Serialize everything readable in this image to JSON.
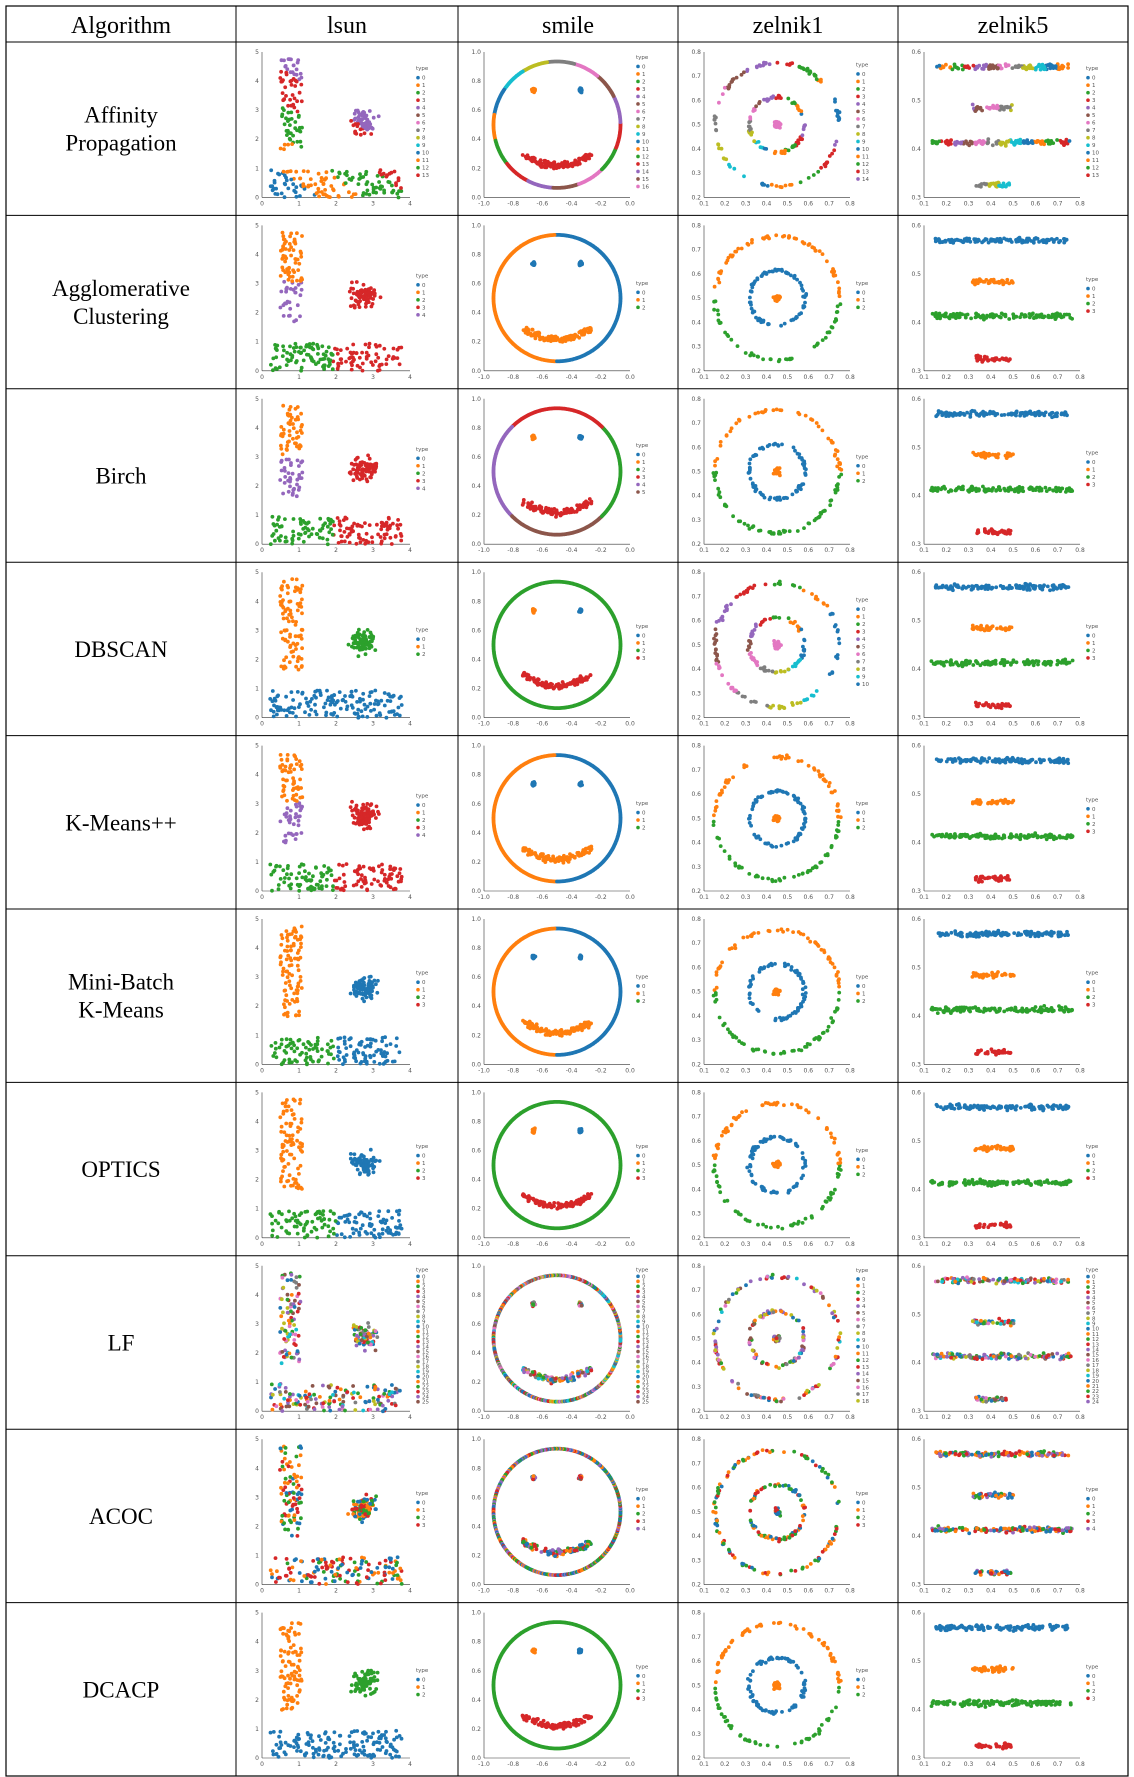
{
  "table": {
    "header_first": "Algorithm",
    "datasets": [
      "lsun",
      "smile",
      "zelnik1",
      "zelnik5"
    ],
    "rows": [
      {
        "lines": [
          "Affinity",
          "Propagation"
        ],
        "clusters": {
          "lsun": 14,
          "smile": 17,
          "zelnik1": 15,
          "zelnik5": 14
        }
      },
      {
        "lines": [
          "Agglomerative",
          "Clustering"
        ],
        "clusters": {
          "lsun": 5,
          "smile": 3,
          "zelnik1": 3,
          "zelnik5": 4
        }
      },
      {
        "lines": [
          "Birch"
        ],
        "clusters": {
          "lsun": 5,
          "smile": 6,
          "zelnik1": 3,
          "zelnik5": 4
        }
      },
      {
        "lines": [
          "DBSCAN"
        ],
        "clusters": {
          "lsun": 3,
          "smile": 4,
          "zelnik1": 11,
          "zelnik5": 4
        }
      },
      {
        "lines": [
          "K-Means++"
        ],
        "clusters": {
          "lsun": 5,
          "smile": 3,
          "zelnik1": 3,
          "zelnik5": 4
        }
      },
      {
        "lines": [
          "Mini-Batch",
          "K-Means"
        ],
        "clusters": {
          "lsun": 4,
          "smile": 3,
          "zelnik1": 3,
          "zelnik5": 4
        }
      },
      {
        "lines": [
          "OPTICS"
        ],
        "clusters": {
          "lsun": 4,
          "smile": 4,
          "zelnik1": 3,
          "zelnik5": 4
        }
      },
      {
        "lines": [
          "LF"
        ],
        "clusters": {
          "lsun": 26,
          "smile": 40,
          "zelnik1": 19,
          "zelnik5": 25
        }
      },
      {
        "lines": [
          "ACOC"
        ],
        "clusters": {
          "lsun": 4,
          "smile": 5,
          "zelnik1": 4,
          "zelnik5": 5
        }
      },
      {
        "lines": [
          "DCACP"
        ],
        "clusters": {
          "lsun": 3,
          "smile": 4,
          "zelnik1": 3,
          "zelnik5": 4
        }
      }
    ]
  },
  "chart_data": {
    "type": "scatter",
    "legend_title": "type",
    "legend_placement": "right",
    "palette": [
      "#1f77b4",
      "#ff7f0e",
      "#2ca02c",
      "#d62728",
      "#9467bd",
      "#8c564b",
      "#e377c2",
      "#7f7f7f",
      "#bcbd22",
      "#17becf"
    ],
    "panels": {
      "lsun": {
        "xticks": [
          "0",
          "1",
          "2",
          "3",
          "4"
        ],
        "yticks": [
          "0",
          "1",
          "2",
          "3",
          "4",
          "5"
        ],
        "xlim": [
          0,
          4
        ],
        "ylim": [
          0,
          5
        ]
      },
      "smile": {
        "xticks": [
          "-1.0",
          "-0.8",
          "-0.6",
          "-0.4",
          "-0.2",
          "0.0"
        ],
        "yticks": [
          "0.0",
          "0.2",
          "0.4",
          "0.6",
          "0.8",
          "1.0"
        ],
        "xlim": [
          -1,
          0
        ],
        "ylim": [
          0,
          1
        ]
      },
      "zelnik1": {
        "xticks": [
          "0.1",
          "0.2",
          "0.3",
          "0.4",
          "0.5",
          "0.6",
          "0.7",
          "0.8"
        ],
        "yticks": [
          "0.2",
          "0.3",
          "0.4",
          "0.5",
          "0.6",
          "0.7",
          "0.8"
        ],
        "xlim": [
          0.1,
          0.8
        ],
        "ylim": [
          0.2,
          0.85
        ]
      },
      "zelnik5": {
        "xticks": [
          "0.1",
          "0.2",
          "0.3",
          "0.4",
          "0.5",
          "0.6",
          "0.7",
          "0.8"
        ],
        "yticks": [
          "0.3",
          "0.4",
          "0.5",
          "0.6"
        ],
        "xlim": [
          0.1,
          0.85
        ],
        "ylim": [
          0.25,
          0.85
        ]
      }
    }
  }
}
